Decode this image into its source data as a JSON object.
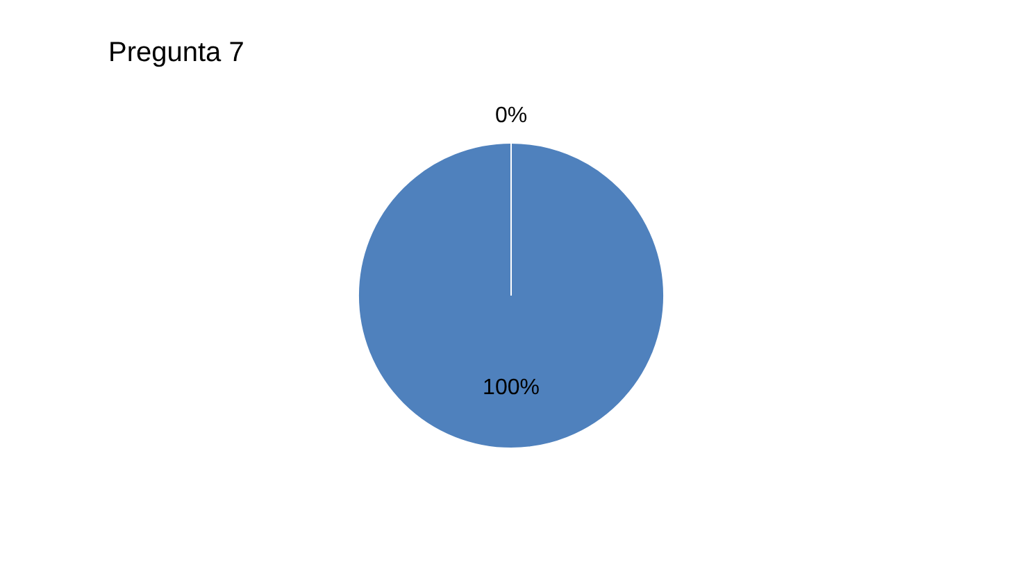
{
  "chart_data": {
    "type": "pie",
    "title": "Pregunta 7",
    "categories": [
      null,
      null
    ],
    "values": [
      100,
      0
    ],
    "colors": [
      "#4f81bd",
      "#c0504d"
    ],
    "value_labels": [
      "100%",
      "0%"
    ]
  }
}
